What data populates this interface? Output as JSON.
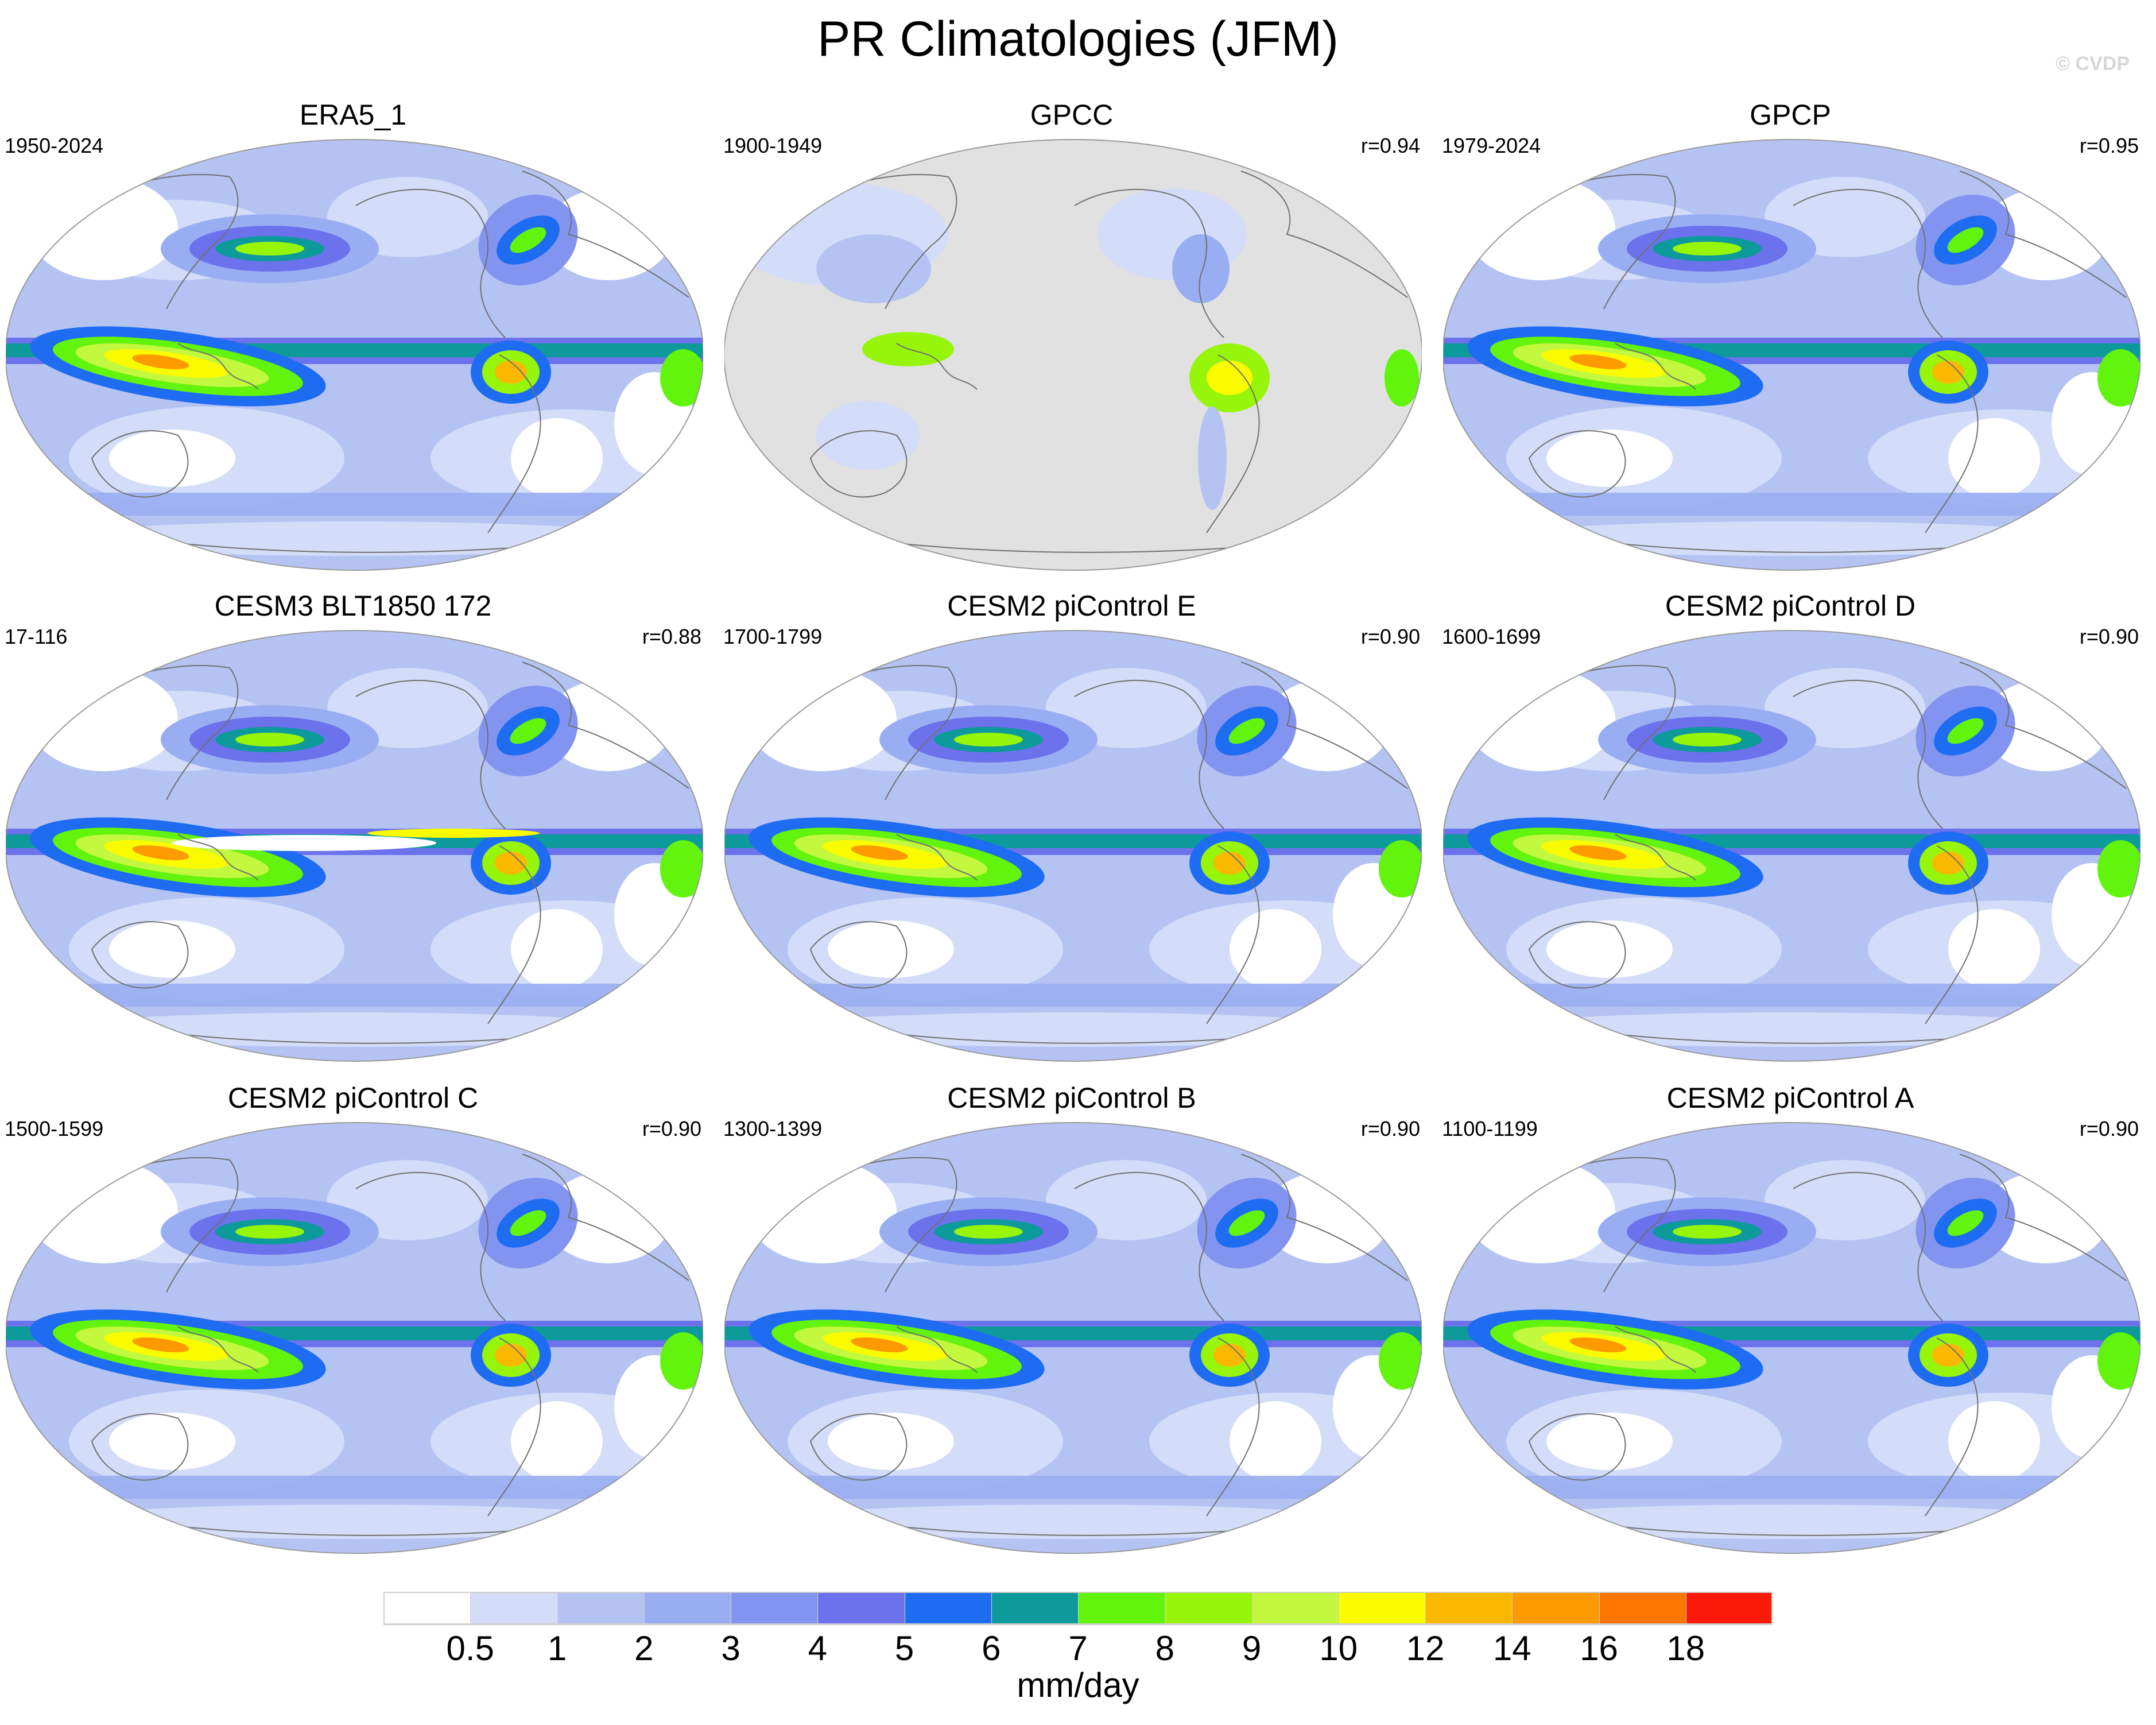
{
  "title": "PR Climatologies (JFM)",
  "watermark": "© CVDP",
  "panels": [
    {
      "title": "ERA5_1",
      "period": "1950-2024",
      "corr": "",
      "style": "era5"
    },
    {
      "title": "GPCC",
      "period": "1900-1949",
      "corr": "r=0.94",
      "style": "gpcc"
    },
    {
      "title": "GPCP",
      "period": "1979-2024",
      "corr": "r=0.95",
      "style": "gpcp"
    },
    {
      "title": "CESM3 BLT1850 172",
      "period": "17-116",
      "corr": "r=0.88",
      "style": "cesm3"
    },
    {
      "title": "CESM2 piControl E",
      "period": "1700-1799",
      "corr": "r=0.90",
      "style": "cesm2"
    },
    {
      "title": "CESM2 piControl D",
      "period": "1600-1699",
      "corr": "r=0.90",
      "style": "cesm2"
    },
    {
      "title": "CESM2 piControl C",
      "period": "1500-1599",
      "corr": "r=0.90",
      "style": "cesm2"
    },
    {
      "title": "CESM2 piControl B",
      "period": "1300-1399",
      "corr": "r=0.90",
      "style": "cesm2"
    },
    {
      "title": "CESM2 piControl A",
      "period": "1100-1199",
      "corr": "r=0.90",
      "style": "cesm2"
    }
  ],
  "colorbar": {
    "levels": [
      "0.5",
      "1",
      "2",
      "3",
      "4",
      "5",
      "6",
      "7",
      "8",
      "9",
      "10",
      "12",
      "14",
      "16",
      "18"
    ],
    "colors": [
      "#ffffff",
      "#d3dcf8",
      "#b5c3f3",
      "#99aef2",
      "#8294ef",
      "#6b72ec",
      "#1e6cf2",
      "#0d9a9a",
      "#62f40c",
      "#97f50a",
      "#c2f83d",
      "#fbfb00",
      "#fbb800",
      "#fc9a00",
      "#fb7500",
      "#fb1a0a"
    ],
    "units": "mm/day"
  }
}
